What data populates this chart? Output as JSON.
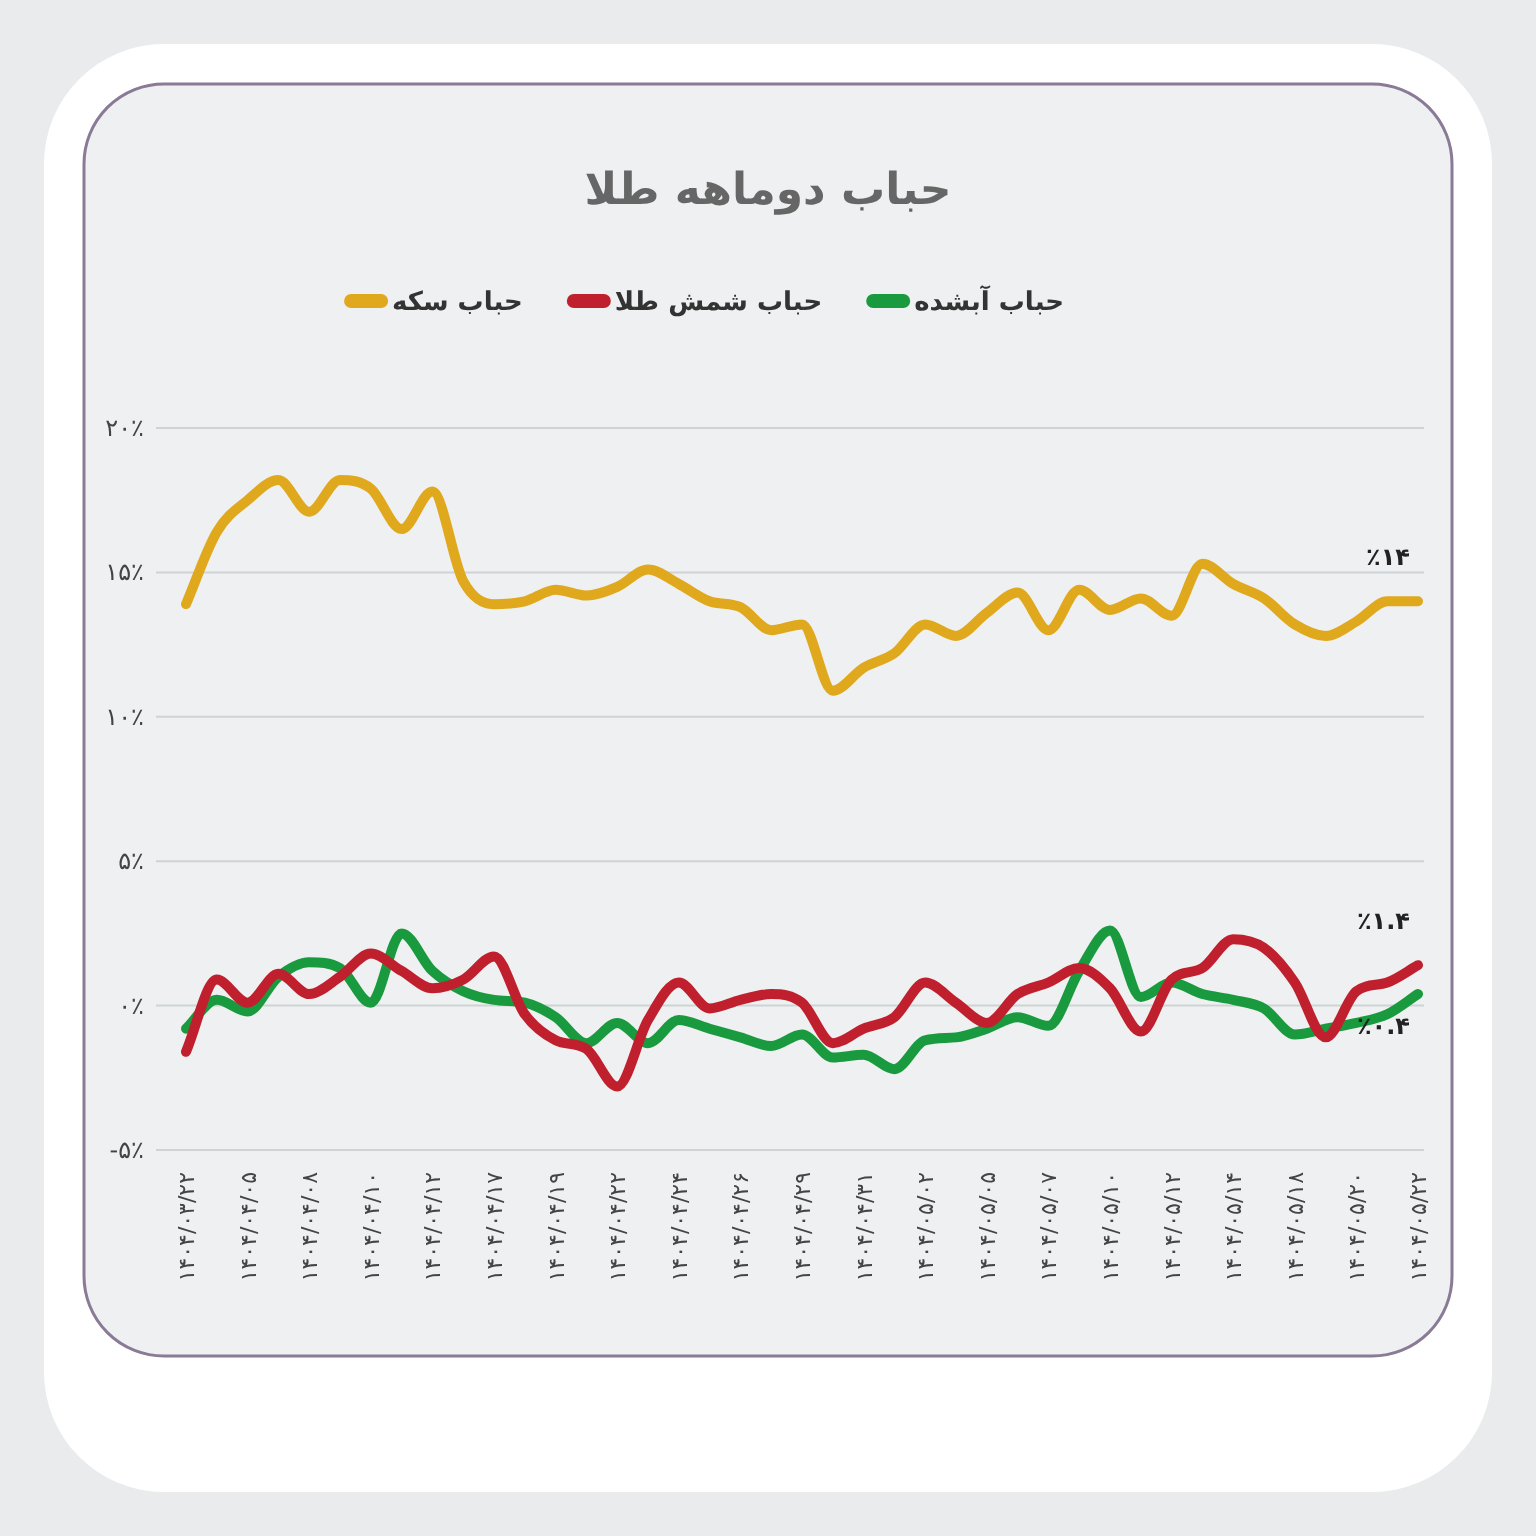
{
  "chart_data": {
    "type": "line",
    "title": "حباب دوماهه طلا",
    "categories": [
      "۱۴۰۴/۰۳/۲۲",
      null,
      "۱۴۰۴/۰۴/۰۵",
      null,
      "۱۴۰۴/۰۴/۰۸",
      null,
      "۱۴۰۴/۰۴/۱۰",
      null,
      "۱۴۰۴/۰۴/۱۲",
      null,
      "۱۴۰۴/۰۴/۱۷",
      null,
      "۱۴۰۴/۰۴/۱۹",
      null,
      "۱۴۰۴/۰۴/۲۲",
      null,
      "۱۴۰۴/۰۴/۲۴",
      null,
      "۱۴۰۴/۰۴/۲۶",
      null,
      "۱۴۰۴/۰۴/۲۹",
      null,
      "۱۴۰۴/۰۴/۳۱",
      null,
      "۱۴۰۴/۰۵/۰۲",
      null,
      "۱۴۰۴/۰۵/۰۵",
      null,
      "۱۴۰۴/۰۵/۰۷",
      null,
      "۱۴۰۴/۰۵/۱۰",
      null,
      "۱۴۰۴/۰۵/۱۲",
      null,
      "۱۴۰۴/۰۵/۱۴",
      null,
      "۱۴۰۴/۰۵/۱۸",
      null,
      "۱۴۰۴/۰۵/۲۰",
      null,
      "۱۴۰۴/۰۵/۲۲"
    ],
    "series": [
      {
        "name": "حباب آبشده",
        "color": "#1a9a3e",
        "values": [
          -0.8,
          0.2,
          -0.2,
          1.0,
          1.5,
          1.3,
          0.1,
          2.5,
          1.2,
          0.5,
          0.2,
          0.1,
          -0.4,
          -1.3,
          -0.6,
          -1.3,
          -0.5,
          -0.8,
          -1.1,
          -1.4,
          -1.0,
          -1.8,
          -1.7,
          -2.2,
          -1.2,
          -1.1,
          -0.8,
          -0.4,
          -0.7,
          1.2,
          2.6,
          0.3,
          0.8,
          0.4,
          0.2,
          -0.1,
          -1.0,
          -0.8,
          -0.6,
          -0.3,
          0.4
        ],
        "value_labels": [
          null,
          null,
          null,
          null,
          null,
          null,
          null,
          null,
          null,
          null,
          null,
          null,
          null,
          null,
          null,
          null,
          null,
          null,
          null,
          null,
          null,
          null,
          null,
          null,
          null,
          null,
          null,
          null,
          null,
          null,
          null,
          null,
          null,
          null,
          null,
          null,
          null,
          null,
          null,
          null,
          "٪۰.۴"
        ]
      },
      {
        "name": "حباب شمش طلا",
        "color": "#c0202e",
        "values": [
          -1.6,
          0.9,
          0.1,
          1.1,
          0.4,
          1.0,
          1.8,
          1.2,
          0.6,
          0.9,
          1.7,
          -0.3,
          -1.2,
          -1.5,
          -2.8,
          -0.5,
          0.8,
          -0.1,
          0.2,
          0.4,
          0.1,
          -1.3,
          -0.8,
          -0.4,
          0.8,
          0.1,
          -0.6,
          0.4,
          0.8,
          1.3,
          0.6,
          -0.9,
          0.9,
          1.3,
          2.3,
          2.0,
          0.8,
          -1.1,
          0.5,
          0.8,
          1.4
        ],
        "value_labels": [
          null,
          null,
          null,
          null,
          null,
          null,
          null,
          null,
          null,
          null,
          null,
          null,
          null,
          null,
          null,
          null,
          null,
          null,
          null,
          null,
          null,
          null,
          null,
          null,
          null,
          null,
          null,
          null,
          null,
          null,
          null,
          null,
          null,
          null,
          null,
          null,
          null,
          null,
          null,
          null,
          "٪۱.۴"
        ]
      },
      {
        "name": "حباب سکه",
        "color": "#e0a81c",
        "values": [
          13.9,
          16.4,
          17.5,
          18.2,
          17.1,
          18.2,
          17.9,
          16.5,
          17.8,
          14.7,
          13.9,
          14.0,
          14.4,
          14.2,
          14.5,
          15.1,
          14.6,
          14.0,
          13.8,
          13.0,
          13.2,
          10.9,
          11.7,
          12.2,
          13.2,
          12.8,
          13.6,
          14.3,
          13.0,
          14.4,
          13.7,
          14.1,
          13.5,
          15.3,
          14.6,
          14.1,
          13.2,
          12.8,
          13.3,
          14.0,
          14.0
        ],
        "value_labels": [
          null,
          null,
          null,
          null,
          null,
          null,
          null,
          null,
          null,
          null,
          null,
          null,
          null,
          null,
          null,
          null,
          null,
          null,
          null,
          null,
          null,
          null,
          null,
          null,
          null,
          null,
          null,
          null,
          null,
          null,
          null,
          null,
          null,
          null,
          null,
          null,
          null,
          null,
          null,
          null,
          "٪۱۴"
        ]
      }
    ],
    "ylim": [
      -5,
      20
    ],
    "yticks": [
      {
        "value": -5,
        "label": "-۵٪"
      },
      {
        "value": 0,
        "label": "۰٪"
      },
      {
        "value": 5,
        "label": "۵٪"
      },
      {
        "value": 10,
        "label": "۱۰٪"
      },
      {
        "value": 15,
        "label": "۱۵٪"
      },
      {
        "value": 20,
        "label": "۲۰٪"
      }
    ],
    "grid": "y",
    "legend": "top",
    "marker": "none",
    "line_style": "solid"
  }
}
